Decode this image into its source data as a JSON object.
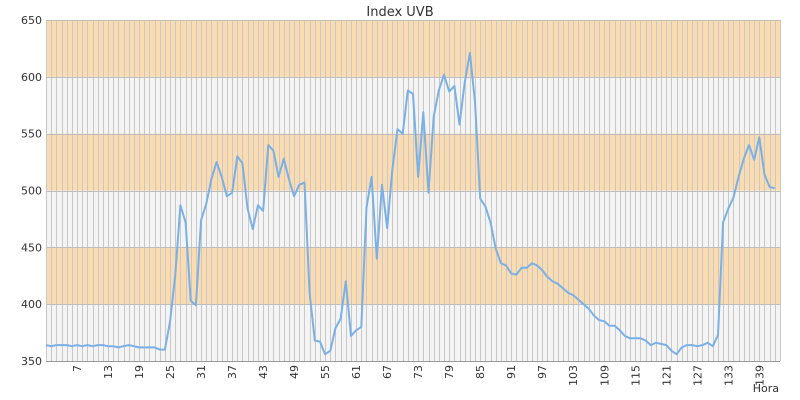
{
  "colors": {
    "band_fill": "#fbdcb0",
    "plain_fill": "#f4f4f4",
    "line": "#7ab0e6",
    "grid": "#c8c8c8",
    "text": "#333333"
  },
  "chart_data": {
    "type": "line",
    "title": "Index UVB",
    "xlabel": "Hora",
    "ylabel": "",
    "xlim": [
      1,
      143
    ],
    "ylim": [
      350,
      650
    ],
    "x_ticks": [
      7,
      13,
      19,
      25,
      31,
      37,
      43,
      49,
      55,
      61,
      67,
      73,
      79,
      85,
      91,
      97,
      103,
      109,
      115,
      121,
      127,
      133,
      139
    ],
    "y_ticks": [
      350,
      400,
      450,
      500,
      550,
      600,
      650
    ],
    "shaded_bands": [
      [
        400,
        450
      ],
      [
        500,
        550
      ],
      [
        600,
        650
      ]
    ],
    "grid": true,
    "x_start": 1,
    "values": [
      364,
      363,
      364,
      364,
      364,
      363,
      364,
      363,
      364,
      363,
      364,
      364,
      363,
      363,
      362,
      363,
      364,
      363,
      362,
      362,
      362,
      362,
      360,
      360,
      385,
      425,
      487,
      472,
      403,
      399,
      474,
      488,
      510,
      525,
      512,
      495,
      498,
      530,
      524,
      484,
      466,
      487,
      482,
      540,
      535,
      512,
      528,
      510,
      495,
      505,
      507,
      410,
      368,
      367,
      356,
      359,
      379,
      387,
      420,
      372,
      377,
      380,
      485,
      512,
      440,
      505,
      467,
      518,
      554,
      550,
      588,
      585,
      512,
      569,
      498,
      565,
      588,
      602,
      587,
      592,
      558,
      595,
      621,
      578,
      493,
      486,
      472,
      449,
      436,
      434,
      427,
      426,
      432,
      432,
      436,
      434,
      430,
      424,
      420,
      418,
      414,
      410,
      408,
      404,
      400,
      396,
      390,
      386,
      385,
      381,
      381,
      377,
      372,
      370,
      370,
      370,
      368,
      364,
      366,
      365,
      364,
      359,
      356,
      362,
      364,
      364,
      363,
      364,
      366,
      363,
      373,
      472,
      484,
      494,
      512,
      528,
      540,
      527,
      547,
      514,
      503,
      502
    ]
  }
}
